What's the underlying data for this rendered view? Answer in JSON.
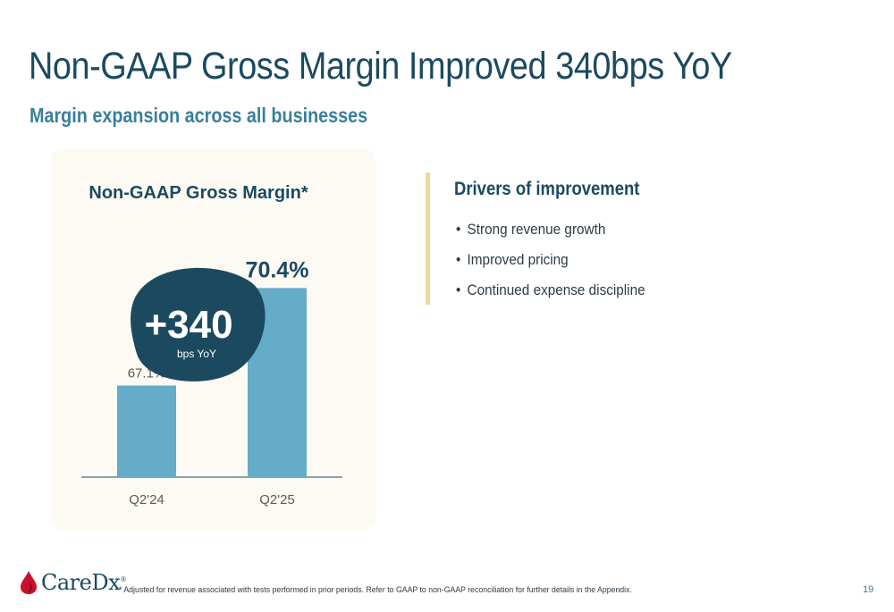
{
  "slide": {
    "title": "Non-GAAP Gross Margin Improved 340bps YoY",
    "subtitle": "Margin expansion across all businesses",
    "page_number": "19",
    "footnote": "* Adjusted for revenue associated with tests performed in prior periods. Refer to GAAP to non-GAAP reconciliation for further details in the Appendix."
  },
  "chart_data": {
    "type": "bar",
    "title": "Non-GAAP Gross Margin*",
    "categories": [
      "Q2'24",
      "Q2'25"
    ],
    "values": [
      67.1,
      70.4
    ],
    "value_labels": [
      "67.1%",
      "70.4%"
    ],
    "unit": "%",
    "ylim": [
      64,
      71.5
    ],
    "grid": false,
    "bar_color": "#65acc8"
  },
  "callout": {
    "value": "+340",
    "label": "bps YoY",
    "color": "#1b4a60"
  },
  "drivers": {
    "heading": "Drivers of improvement",
    "bullet": "•",
    "items": [
      "Strong revenue growth",
      "Improved pricing",
      "Continued expense discipline"
    ]
  },
  "brand": {
    "name": "CareDx",
    "trademark": "®",
    "logo_icon": "drop-icon",
    "accent": "#c8102e",
    "primary": "#1b4a60"
  }
}
